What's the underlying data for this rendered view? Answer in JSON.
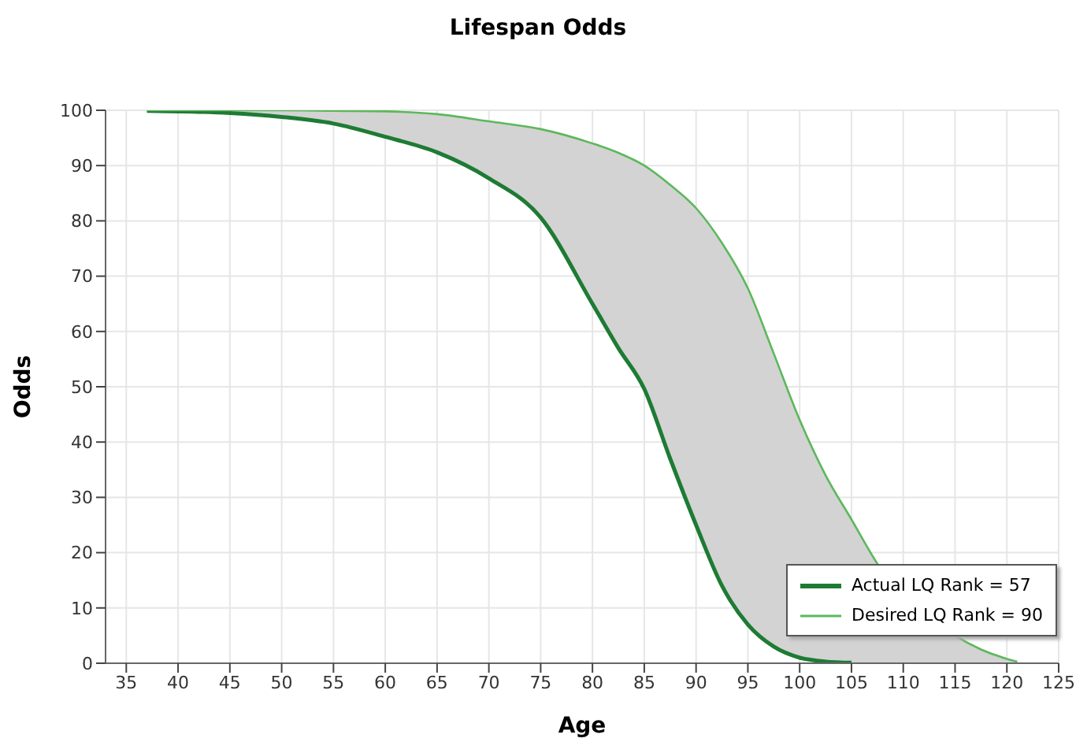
{
  "chart_data": {
    "type": "line",
    "title": "Lifespan Odds",
    "xlabel": "Age",
    "ylabel": "Odds",
    "x": [
      37,
      40,
      45,
      50,
      55,
      60,
      65,
      70,
      75,
      80,
      82.5,
      85,
      87.5,
      90,
      92.5,
      95,
      97.5,
      100,
      102.5,
      105,
      107.5,
      110,
      112.5,
      115,
      117.5,
      120,
      121
    ],
    "series": [
      {
        "name": "Actual LQ Rank = 57",
        "color": "#1e7b34",
        "values": [
          99.9,
          99.8,
          99.5,
          98.8,
          97.6,
          95.2,
          92.4,
          87.7,
          80.6,
          65,
          57,
          49.6,
          37,
          25,
          14,
          7,
          3,
          1,
          0.3,
          0.1,
          null,
          null,
          null,
          null,
          null,
          null,
          null
        ]
      },
      {
        "name": "Desired LQ Rank = 90",
        "color": "#5cb85c",
        "values": [
          100,
          100,
          100,
          100,
          99.9,
          99.8,
          99.3,
          98,
          96.6,
          94,
          92.3,
          90,
          86.5,
          82.3,
          76,
          67.8,
          56,
          44,
          34,
          26,
          18,
          null,
          null,
          5,
          2.5,
          0.8,
          0.3
        ],
        "lower": [
          99.9,
          99.8,
          99.5,
          98.8,
          97.6,
          95.2,
          92.4,
          87.7,
          80.6,
          65,
          57,
          49.6,
          37,
          25,
          14,
          7,
          3,
          1,
          0.3,
          0.1,
          0,
          null,
          null,
          0,
          0,
          0,
          0
        ],
        "upper": [
          100,
          100,
          100,
          100,
          99.9,
          99.8,
          99.3,
          98,
          96.6,
          94,
          92.3,
          90,
          86.5,
          82.3,
          76,
          67.8,
          56,
          44,
          34,
          26,
          18,
          null,
          null,
          5,
          2.5,
          0.8,
          0.3
        ]
      }
    ],
    "xlim": [
      33,
      125
    ],
    "xticks": [
      35,
      40,
      45,
      50,
      55,
      60,
      65,
      70,
      75,
      80,
      85,
      90,
      95,
      100,
      105,
      110,
      115,
      120,
      125
    ],
    "ylim": [
      0,
      100
    ],
    "yticks": [
      0,
      10,
      20,
      30,
      40,
      50,
      60,
      70,
      80,
      90,
      100
    ],
    "grid": true,
    "legend": "bottom right",
    "marker": "none",
    "line_style": "solid"
  }
}
